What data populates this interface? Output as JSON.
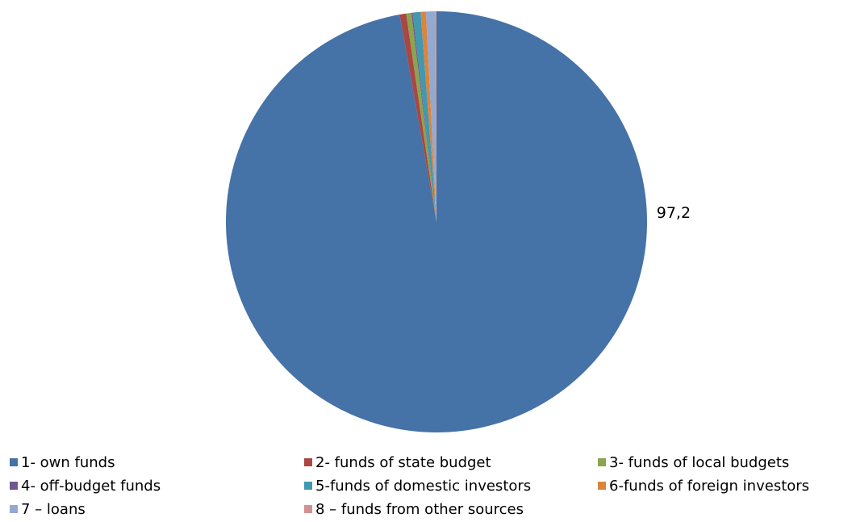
{
  "chart_data": {
    "type": "pie",
    "categories": [
      "1- own funds",
      "2- funds of state budget",
      "3- funds of local budgets",
      "4- off-budget funds",
      "5-funds of domestic investors",
      "6-funds of foreign investors",
      "7 – loans",
      "8 – funds from other sources"
    ],
    "values": [
      97.2,
      0.5,
      0.4,
      0.1,
      0.6,
      0.4,
      0.7,
      0.1
    ],
    "colors": [
      "#4572a7",
      "#aa4643",
      "#89a54e",
      "#71588f",
      "#4198af",
      "#db843d",
      "#93a9cf",
      "#d19392"
    ],
    "data_labels": [
      "97,2",
      "",
      "",
      "",
      "",
      "",
      "",
      ""
    ],
    "legend_position": "bottom"
  }
}
